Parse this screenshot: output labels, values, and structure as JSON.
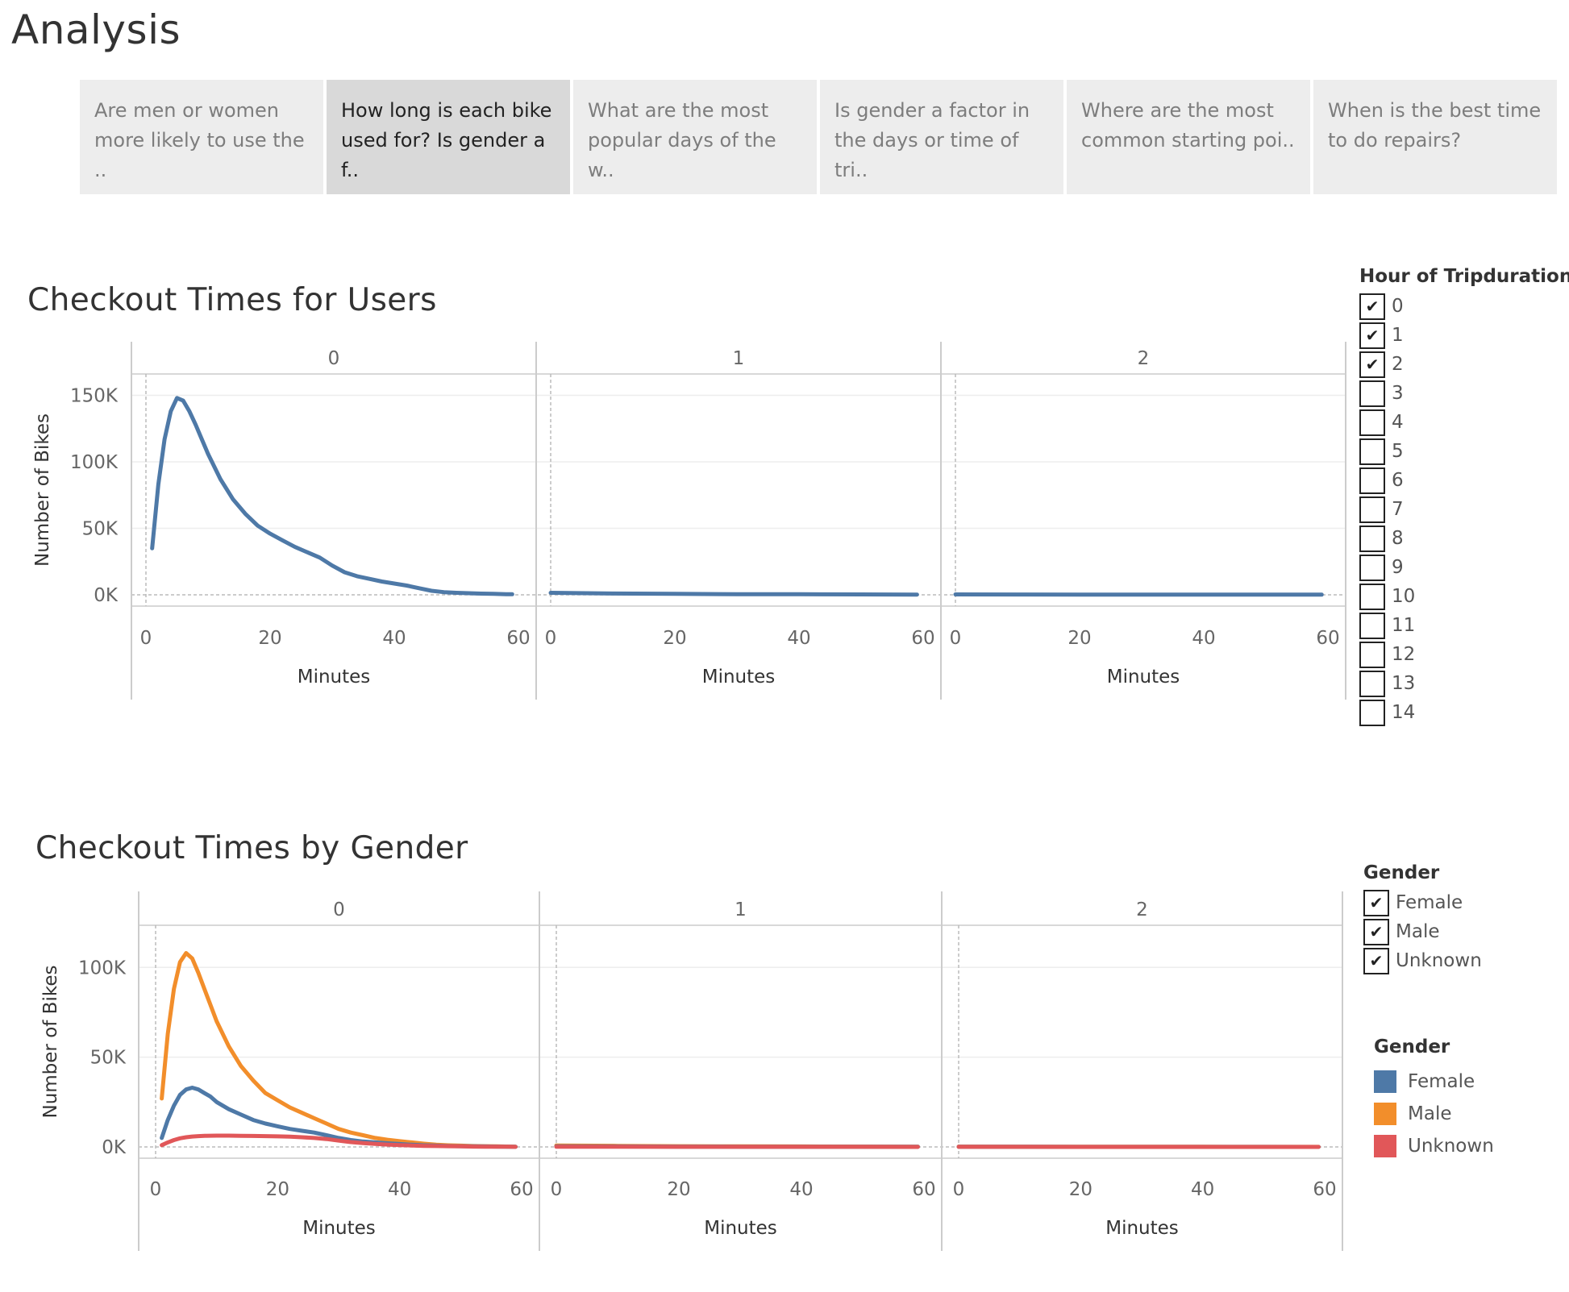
{
  "page": {
    "title": "Analysis"
  },
  "story_tabs": [
    {
      "label": "Are men or women more likely to use the ..",
      "active": false
    },
    {
      "label": "How long is each bike used for? Is gender a f..",
      "active": true
    },
    {
      "label": "What are the most popular days of the w..",
      "active": false
    },
    {
      "label": "Is gender a factor in the days or time of tri..",
      "active": false
    },
    {
      "label": "Where are the most common starting poi..",
      "active": false
    },
    {
      "label": "When is the best time to do repairs?",
      "active": false
    }
  ],
  "hour_filter": {
    "title": "Hour of Tripduration",
    "items": [
      {
        "label": "0",
        "checked": true
      },
      {
        "label": "1",
        "checked": true
      },
      {
        "label": "2",
        "checked": true
      },
      {
        "label": "3",
        "checked": false
      },
      {
        "label": "4",
        "checked": false
      },
      {
        "label": "5",
        "checked": false
      },
      {
        "label": "6",
        "checked": false
      },
      {
        "label": "7",
        "checked": false
      },
      {
        "label": "8",
        "checked": false
      },
      {
        "label": "9",
        "checked": false
      },
      {
        "label": "10",
        "checked": false
      },
      {
        "label": "11",
        "checked": false
      },
      {
        "label": "12",
        "checked": false
      },
      {
        "label": "13",
        "checked": false
      },
      {
        "label": "14",
        "checked": false
      }
    ]
  },
  "gender_filter": {
    "title": "Gender",
    "items": [
      {
        "label": "Female",
        "checked": true
      },
      {
        "label": "Male",
        "checked": true
      },
      {
        "label": "Unknown",
        "checked": true
      }
    ]
  },
  "gender_legend": {
    "title": "Gender",
    "items": [
      {
        "label": "Female",
        "color": "#4e79a7"
      },
      {
        "label": "Male",
        "color": "#f28e2b"
      },
      {
        "label": "Unknown",
        "color": "#e15759"
      }
    ]
  },
  "chart_data": [
    {
      "type": "line",
      "title": "Checkout Times for Users",
      "xlabel": "Minutes",
      "ylabel": "Number of Bikes",
      "facets": [
        "0",
        "1",
        "2"
      ],
      "x_ticks": [
        0,
        20,
        40,
        60
      ],
      "y_ticks": [
        0,
        50000,
        100000,
        150000
      ],
      "y_tick_labels": [
        "0K",
        "50K",
        "100K",
        "150K"
      ],
      "xlim": [
        0,
        60
      ],
      "ylim": [
        0,
        160000
      ],
      "grid": true,
      "series": [
        {
          "color": "#4e79a7",
          "facet_values": [
            {
              "x": [
                1,
                2,
                3,
                4,
                5,
                6,
                7,
                8,
                9,
                10,
                12,
                14,
                16,
                18,
                20,
                22,
                24,
                26,
                28,
                30,
                32,
                34,
                36,
                38,
                40,
                42,
                44,
                46,
                48,
                50,
                52,
                54,
                56,
                58,
                59
              ],
              "y": [
                35000,
                83000,
                117000,
                138000,
                148000,
                146000,
                138000,
                128000,
                117000,
                106000,
                87000,
                72000,
                61000,
                52000,
                46000,
                41000,
                36000,
                32000,
                28000,
                22000,
                17000,
                14000,
                12000,
                10000,
                8500,
                7000,
                5000,
                3000,
                2000,
                1500,
                1200,
                900,
                700,
                500,
                400
              ]
            },
            {
              "x": [
                0,
                10,
                20,
                30,
                40,
                50,
                59
              ],
              "y": [
                1500,
                1000,
                700,
                500,
                400,
                300,
                200
              ]
            },
            {
              "x": [
                0,
                10,
                20,
                30,
                40,
                50,
                59
              ],
              "y": [
                300,
                250,
                200,
                200,
                150,
                150,
                100
              ]
            }
          ]
        }
      ]
    },
    {
      "type": "line",
      "title": "Checkout Times by Gender",
      "xlabel": "Minutes",
      "ylabel": "Number of Bikes",
      "facets": [
        "0",
        "1",
        "2"
      ],
      "x_ticks": [
        0,
        20,
        40,
        60
      ],
      "y_ticks": [
        0,
        50000,
        100000
      ],
      "y_tick_labels": [
        "0K",
        "50K",
        "100K"
      ],
      "xlim": [
        0,
        60
      ],
      "ylim": [
        0,
        110000
      ],
      "grid": true,
      "series": [
        {
          "name": "Male",
          "color": "#f28e2b",
          "facet_values": [
            {
              "x": [
                1,
                2,
                3,
                4,
                5,
                6,
                7,
                8,
                9,
                10,
                12,
                14,
                16,
                18,
                20,
                22,
                24,
                26,
                28,
                30,
                32,
                34,
                36,
                38,
                40,
                42,
                44,
                46,
                48,
                50,
                52,
                54,
                56,
                58,
                59
              ],
              "y": [
                27000,
                63000,
                88000,
                103000,
                108000,
                105000,
                97000,
                88000,
                79000,
                70000,
                56000,
                45000,
                37000,
                30000,
                26000,
                22000,
                19000,
                16000,
                13000,
                10000,
                8000,
                6500,
                5000,
                4000,
                3200,
                2500,
                1800,
                1200,
                900,
                700,
                500,
                400,
                300,
                200,
                150
              ]
            },
            {
              "x": [
                0,
                10,
                20,
                30,
                40,
                50,
                59
              ],
              "y": [
                800,
                600,
                400,
                300,
                250,
                200,
                150
              ]
            },
            {
              "x": [
                0,
                10,
                20,
                30,
                40,
                50,
                59
              ],
              "y": [
                200,
                150,
                120,
                100,
                80,
                60,
                50
              ]
            }
          ]
        },
        {
          "name": "Female",
          "color": "#4e79a7",
          "facet_values": [
            {
              "x": [
                1,
                2,
                3,
                4,
                5,
                6,
                7,
                8,
                9,
                10,
                12,
                14,
                16,
                18,
                20,
                22,
                24,
                26,
                28,
                30,
                32,
                34,
                36,
                38,
                40,
                42,
                44,
                46,
                48,
                50,
                52,
                54,
                56,
                58,
                59
              ],
              "y": [
                5000,
                15000,
                23000,
                29000,
                32000,
                33000,
                32000,
                30000,
                28000,
                25000,
                21000,
                18000,
                15000,
                13000,
                11500,
                10000,
                9000,
                8000,
                6500,
                5000,
                3800,
                3000,
                2500,
                2000,
                1600,
                1200,
                900,
                700,
                500,
                400,
                300,
                250,
                200,
                150,
                100
              ]
            },
            {
              "x": [
                0,
                10,
                20,
                30,
                40,
                50,
                59
              ],
              "y": [
                300,
                250,
                200,
                150,
                120,
                100,
                80
              ]
            },
            {
              "x": [
                0,
                10,
                20,
                30,
                40,
                50,
                59
              ],
              "y": [
                100,
                80,
                60,
                50,
                40,
                30,
                20
              ]
            }
          ]
        },
        {
          "name": "Unknown",
          "color": "#e15759",
          "facet_values": [
            {
              "x": [
                1,
                2,
                3,
                4,
                5,
                6,
                7,
                8,
                10,
                12,
                14,
                16,
                18,
                20,
                22,
                24,
                26,
                28,
                30,
                32,
                34,
                36,
                38,
                40,
                42,
                44,
                46,
                48,
                50,
                52,
                54,
                56,
                58,
                59
              ],
              "y": [
                1000,
                2500,
                3800,
                4800,
                5400,
                5800,
                6000,
                6200,
                6300,
                6300,
                6200,
                6100,
                6000,
                5900,
                5700,
                5400,
                5000,
                4400,
                3500,
                2700,
                2100,
                1700,
                1300,
                1000,
                800,
                600,
                500,
                400,
                300,
                200,
                150,
                100,
                80,
                50
              ]
            },
            {
              "x": [
                0,
                10,
                20,
                30,
                40,
                50,
                59
              ],
              "y": [
                100,
                80,
                60,
                50,
                40,
                30,
                20
              ]
            },
            {
              "x": [
                0,
                10,
                20,
                30,
                40,
                50,
                59
              ],
              "y": [
                30,
                25,
                20,
                15,
                10,
                10,
                5
              ]
            }
          ]
        }
      ]
    }
  ]
}
